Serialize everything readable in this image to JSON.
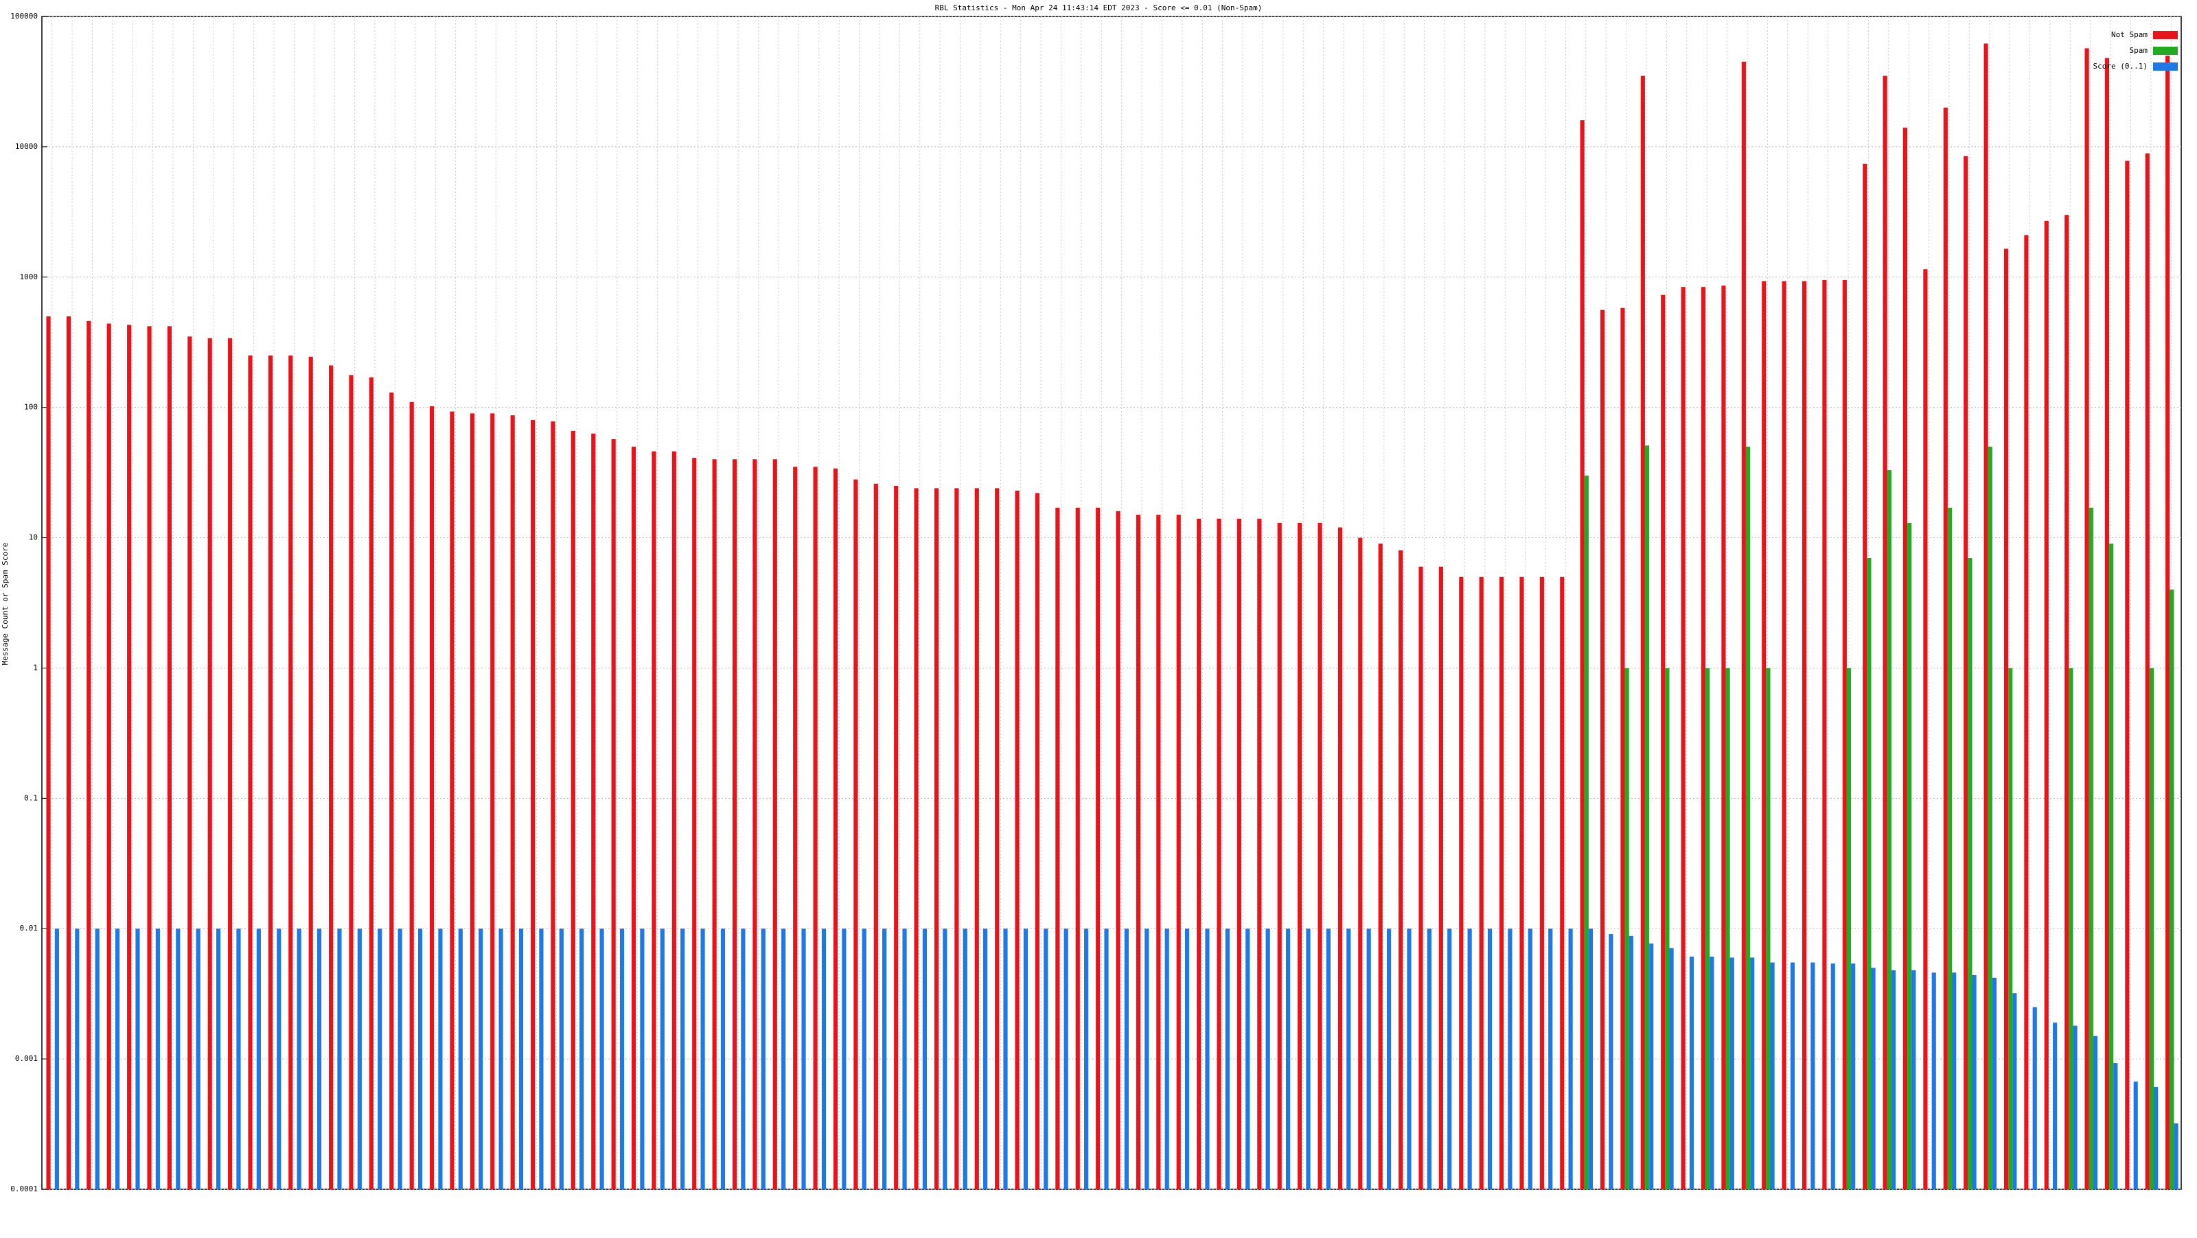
{
  "chart_data": {
    "type": "bar",
    "title": "RBL Statistics - Mon Apr 24 11:43:14 EDT 2023 - Score <= 0.01 (Non-Spam)",
    "y_label": "Message Count or Spam Score",
    "log_y": true,
    "grid": true,
    "legend": "top-right",
    "categories": [
      null,
      null,
      null,
      null,
      null,
      null,
      null,
      null,
      null,
      null,
      null,
      null,
      null,
      null,
      null,
      null,
      null,
      null,
      null,
      null,
      null,
      null,
      null,
      null,
      null,
      null,
      null,
      null,
      null,
      null,
      null,
      null,
      null,
      null,
      null,
      null,
      null,
      null,
      null,
      null,
      null,
      null,
      null,
      null,
      null,
      null,
      null,
      null,
      null,
      null,
      null,
      null,
      null,
      null,
      null,
      null,
      null,
      null,
      null,
      null,
      null,
      null,
      null,
      null,
      null,
      null,
      null,
      null,
      null,
      null,
      null,
      null,
      null,
      null,
      null,
      null,
      null,
      null,
      null,
      null,
      null,
      null,
      null,
      null,
      null,
      null,
      null,
      null,
      null,
      null,
      null,
      null,
      null,
      null,
      null,
      null,
      null,
      null,
      null,
      null,
      null,
      null,
      null,
      null,
      null,
      null
    ],
    "ylim": [
      0.0001,
      100000
    ],
    "yticks": [
      0.0001,
      0.001,
      0.01,
      0.1,
      1,
      10,
      100,
      1000,
      10000,
      100000
    ],
    "series": [
      {
        "name": "Not Spam",
        "color": "#e8141b",
        "values": [
          500,
          500,
          460,
          440,
          430,
          420,
          420,
          350,
          340,
          340,
          250,
          250,
          250,
          245,
          210,
          177,
          170,
          130,
          110,
          102,
          93,
          90,
          90,
          87,
          80,
          78,
          66,
          63,
          57,
          50,
          46,
          46,
          41,
          40,
          40,
          40,
          40,
          35,
          35,
          34,
          28,
          26,
          25,
          24,
          24,
          24,
          24,
          24,
          23,
          22,
          17,
          17,
          17,
          16,
          15,
          15,
          15,
          14,
          14,
          14,
          14,
          13,
          13,
          13,
          12,
          10,
          9,
          8,
          6,
          6,
          5,
          5,
          5,
          5,
          5,
          5,
          16000,
          560,
          580,
          35000,
          730,
          840,
          840,
          860,
          45000,
          930,
          930,
          930,
          950,
          950,
          7400,
          35000,
          14000,
          1150,
          20000,
          8500,
          62000,
          1650,
          2100,
          2700,
          3000,
          57000,
          48000,
          7800,
          8900,
          50000
        ]
      },
      {
        "name": "Spam",
        "color": "#22aa22",
        "values": [
          null,
          null,
          null,
          null,
          null,
          null,
          null,
          null,
          null,
          null,
          null,
          null,
          null,
          null,
          null,
          null,
          null,
          null,
          null,
          null,
          null,
          null,
          null,
          null,
          null,
          null,
          null,
          null,
          null,
          null,
          null,
          null,
          null,
          null,
          null,
          null,
          null,
          null,
          null,
          null,
          null,
          null,
          null,
          null,
          null,
          null,
          null,
          null,
          null,
          null,
          null,
          null,
          null,
          null,
          null,
          null,
          null,
          null,
          null,
          null,
          null,
          null,
          null,
          null,
          null,
          null,
          null,
          null,
          null,
          null,
          null,
          null,
          null,
          null,
          null,
          null,
          30,
          null,
          1,
          51,
          1,
          null,
          1,
          1,
          50,
          1,
          null,
          null,
          null,
          1,
          7,
          33,
          13,
          null,
          17,
          7,
          50,
          1,
          null,
          null,
          1,
          17,
          9,
          null,
          1,
          4
        ]
      },
      {
        "name": "Score (0..1)",
        "color": "#1e78e6",
        "values": [
          0.01,
          0.01,
          0.01,
          0.01,
          0.01,
          0.01,
          0.01,
          0.01,
          0.01,
          0.01,
          0.01,
          0.01,
          0.01,
          0.01,
          0.01,
          0.01,
          0.01,
          0.01,
          0.01,
          0.01,
          0.01,
          0.01,
          0.01,
          0.01,
          0.01,
          0.01,
          0.01,
          0.01,
          0.01,
          0.01,
          0.01,
          0.01,
          0.01,
          0.01,
          0.01,
          0.01,
          0.01,
          0.01,
          0.01,
          0.01,
          0.01,
          0.01,
          0.01,
          0.01,
          0.01,
          0.01,
          0.01,
          0.01,
          0.01,
          0.01,
          0.01,
          0.01,
          0.01,
          0.01,
          0.01,
          0.01,
          0.01,
          0.01,
          0.01,
          0.01,
          0.01,
          0.01,
          0.01,
          0.01,
          0.01,
          0.01,
          0.01,
          0.01,
          0.01,
          0.01,
          0.01,
          0.01,
          0.01,
          0.01,
          0.01,
          0.01,
          0.01,
          0.0091,
          0.0088,
          0.0077,
          0.0071,
          0.0061,
          0.0061,
          0.006,
          0.006,
          0.0055,
          0.0055,
          0.0055,
          0.0054,
          0.0054,
          0.005,
          0.0048,
          0.0048,
          0.0046,
          0.0046,
          0.0044,
          0.0042,
          0.0032,
          0.0025,
          0.0019,
          0.0018,
          0.0015,
          0.00093,
          0.00067,
          0.00061,
          0.00032
        ]
      }
    ]
  }
}
